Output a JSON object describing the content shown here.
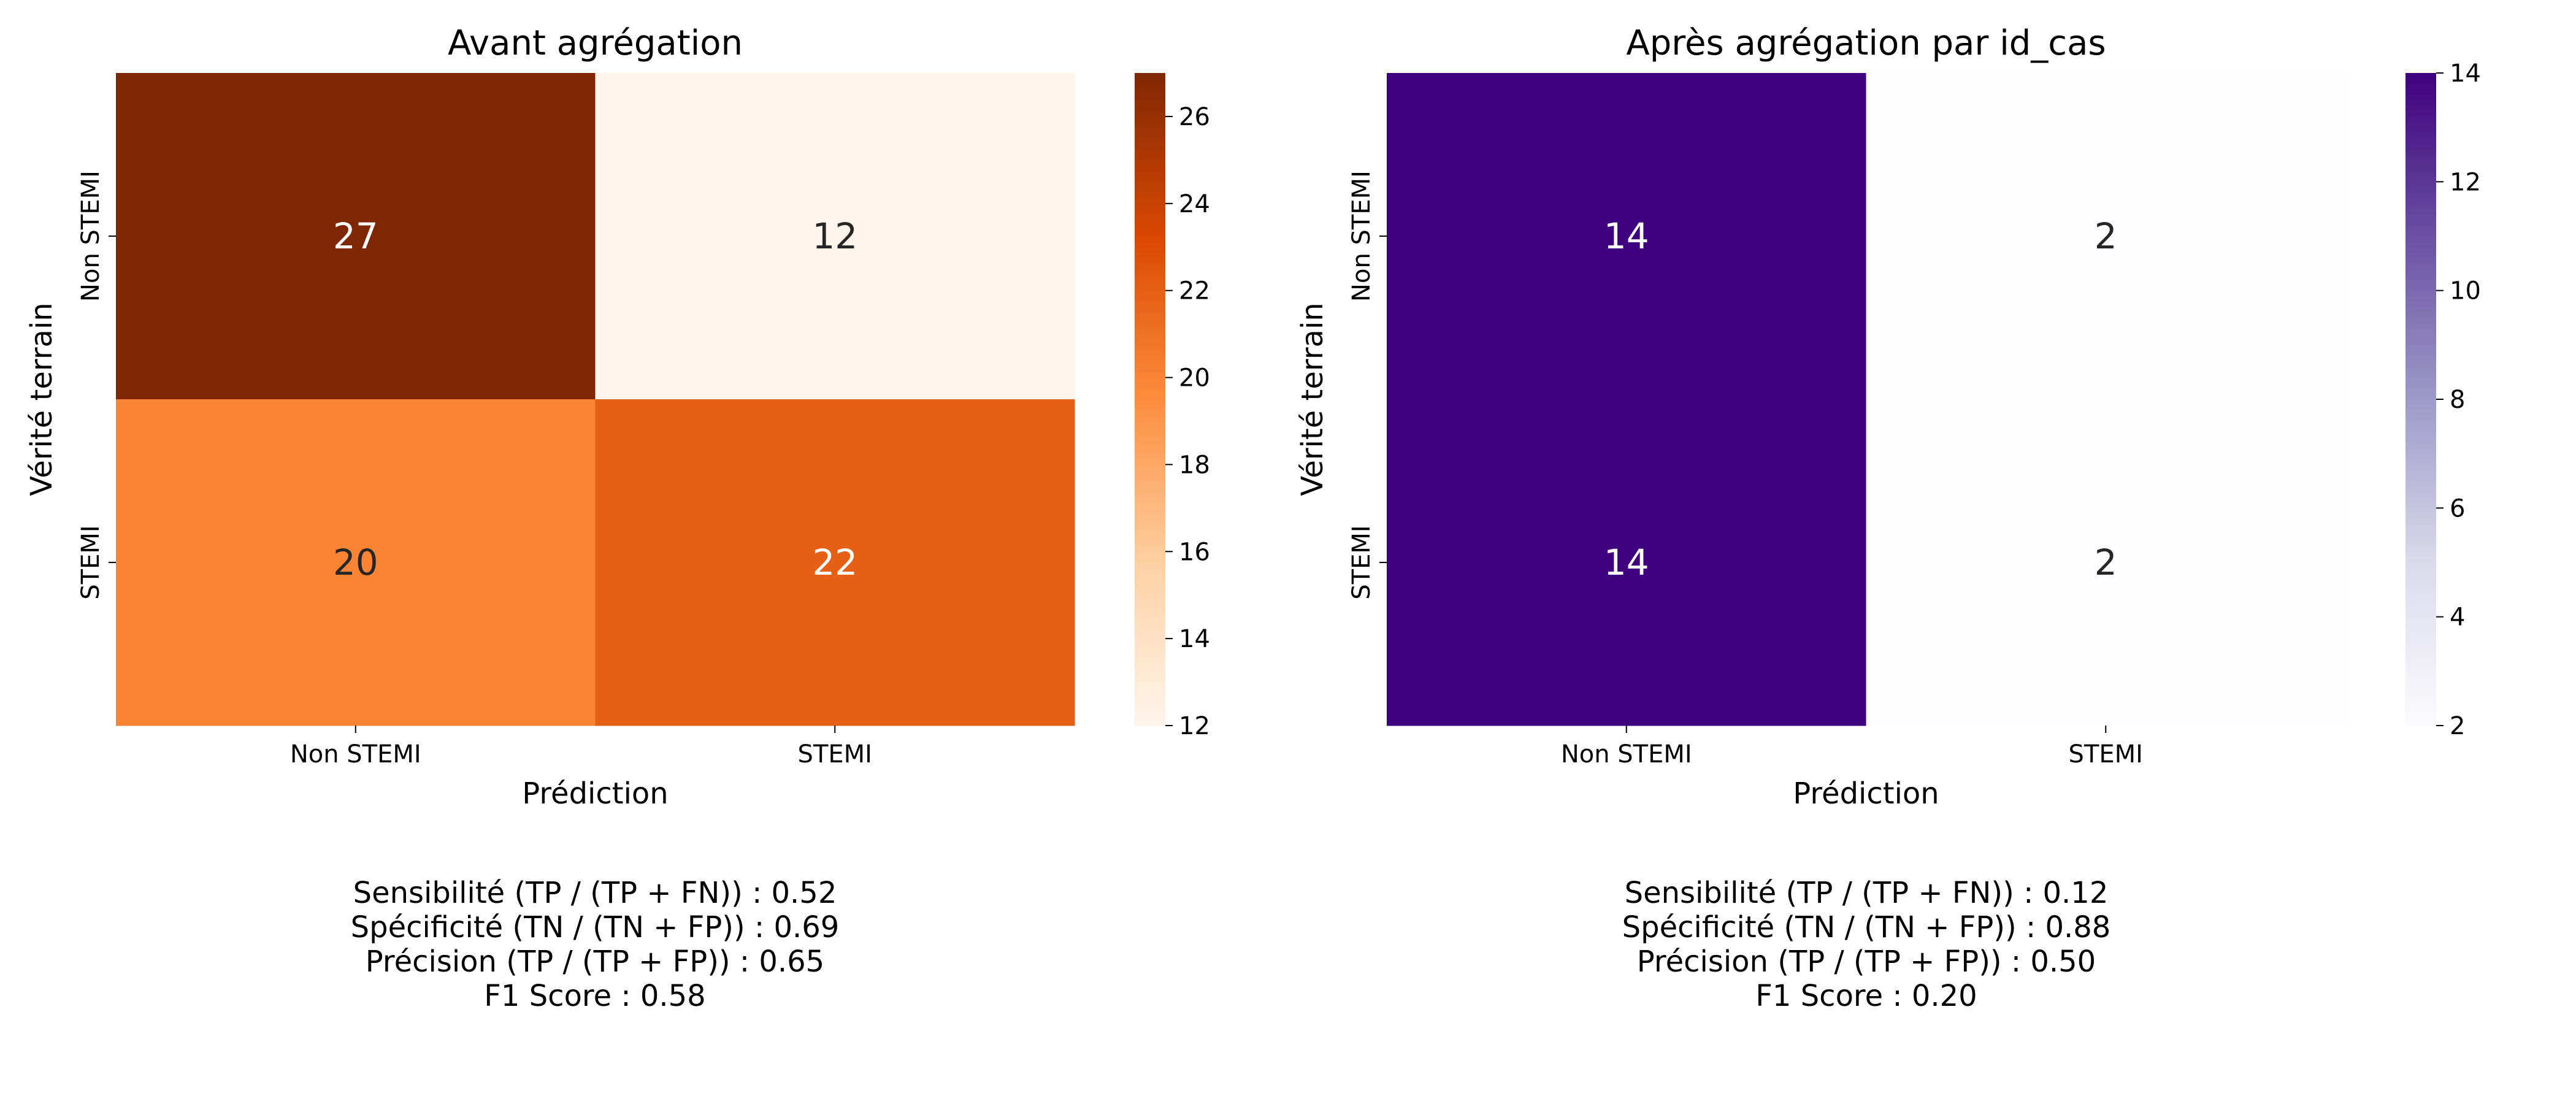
{
  "chart_data": [
    {
      "type": "heatmap",
      "title": "Avant agrégation",
      "xlabel": "Prédiction",
      "ylabel": "Vérité terrain",
      "x_categories": [
        "Non STEMI",
        "STEMI"
      ],
      "y_categories": [
        "Non STEMI",
        "STEMI"
      ],
      "values": [
        [
          27,
          12
        ],
        [
          20,
          22
        ]
      ],
      "colormap": "Oranges",
      "colors": {
        "min": "#fff5eb",
        "low": "#fdd0a2",
        "mid": "#fd8d3c",
        "high": "#d94801",
        "max": "#7f2704"
      },
      "vmin": 12,
      "vmax": 27,
      "colorbar_ticks": [
        12,
        14,
        16,
        18,
        20,
        22,
        24,
        26
      ],
      "metrics": [
        "Sensibilité (TP / (TP + FN)) : 0.52",
        "Spécificité (TN / (TN + FP)) : 0.69",
        "Précision (TP / (TP + FP)) : 0.65",
        "F1 Score : 0.58"
      ]
    },
    {
      "type": "heatmap",
      "title": "Après agrégation par id_cas",
      "xlabel": "Prédiction",
      "ylabel": "Vérité terrain",
      "x_categories": [
        "Non STEMI",
        "STEMI"
      ],
      "y_categories": [
        "Non STEMI",
        "STEMI"
      ],
      "values": [
        [
          14,
          2
        ],
        [
          14,
          2
        ]
      ],
      "colormap": "Purples",
      "colors": {
        "min": "#fcfbfd",
        "low": "#dadaeb",
        "mid": "#9e9ac8",
        "high": "#6a51a3",
        "max": "#3f007d"
      },
      "vmin": 2,
      "vmax": 14,
      "colorbar_ticks": [
        2,
        4,
        6,
        8,
        10,
        12,
        14
      ],
      "metrics": [
        "Sensibilité (TP / (TP + FN)) : 0.12",
        "Spécificité (TN / (TN + FP)) : 0.88",
        "Précision (TP / (TP + FP)) : 0.50",
        "F1 Score : 0.20"
      ]
    }
  ]
}
